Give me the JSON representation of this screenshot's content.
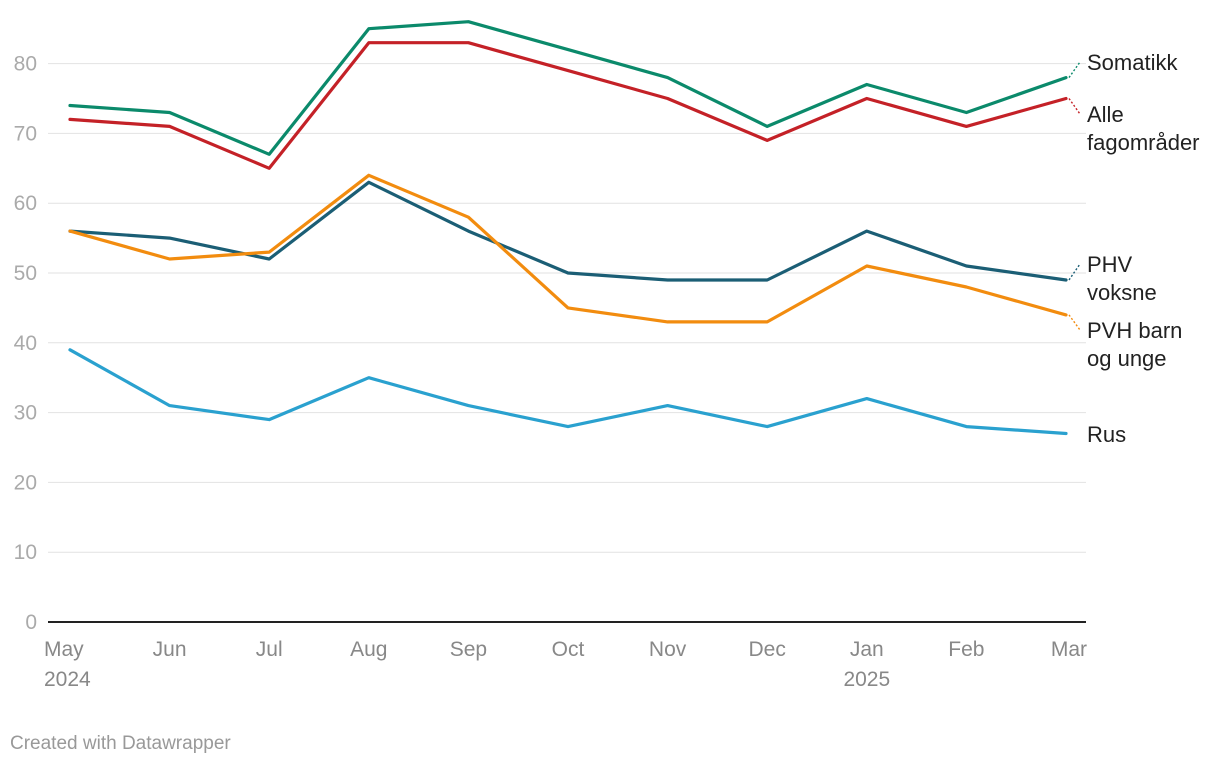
{
  "chart_data": {
    "type": "line",
    "title": "",
    "xlabel": "",
    "ylabel": "",
    "ylim": [
      0,
      85
    ],
    "yticks": [
      0,
      10,
      20,
      30,
      40,
      50,
      60,
      70,
      80
    ],
    "grid": true,
    "categories": [
      "May",
      "Jun",
      "Jul",
      "Aug",
      "Sep",
      "Oct",
      "Nov",
      "Dec",
      "Jan",
      "Feb",
      "Mar"
    ],
    "year_labels": [
      "2024",
      "",
      "",
      "",
      "",
      "",
      "",
      "",
      "2025",
      "",
      ""
    ],
    "series": [
      {
        "name": "Somatikk",
        "label_lines": [
          "Somatikk"
        ],
        "color": "#0b8a6b",
        "values": [
          74,
          73,
          67,
          85,
          86,
          82,
          78,
          71,
          77,
          73,
          78
        ]
      },
      {
        "name": "Alle fagområder",
        "label_lines": [
          "Alle",
          "fagområder"
        ],
        "color": "#c42127",
        "values": [
          72,
          71,
          65,
          83,
          83,
          79,
          75,
          69,
          75,
          71,
          75
        ]
      },
      {
        "name": "PHV voksne",
        "label_lines": [
          "PHV",
          "voksne"
        ],
        "color": "#1b5e75",
        "values": [
          56,
          55,
          52,
          63,
          56,
          50,
          49,
          49,
          56,
          51,
          49
        ]
      },
      {
        "name": "PVH barn og unge",
        "label_lines": [
          "PVH barn",
          "og unge"
        ],
        "color": "#f28c0f",
        "values": [
          56,
          52,
          53,
          64,
          58,
          45,
          43,
          43,
          51,
          48,
          44
        ]
      },
      {
        "name": "Rus",
        "label_lines": [
          "Rus"
        ],
        "color": "#2aa1cf",
        "values": [
          39,
          31,
          29,
          35,
          31,
          28,
          31,
          28,
          32,
          28,
          27
        ]
      }
    ]
  },
  "credit": "Created with Datawrapper"
}
